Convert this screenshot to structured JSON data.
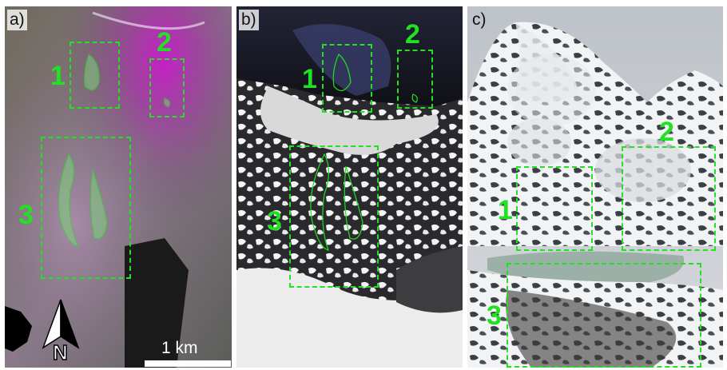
{
  "panels": [
    {
      "label": "a)",
      "kind": "satellite-composite-magenta-green"
    },
    {
      "label": "b)",
      "kind": "satellite-optical-grayscale"
    },
    {
      "label": "c)",
      "kind": "oblique-photo-mountain"
    }
  ],
  "boxes": {
    "a": [
      "1",
      "2",
      "3"
    ],
    "b": [
      "1",
      "2",
      "3"
    ],
    "c": [
      "1",
      "2",
      "3"
    ]
  },
  "scale": {
    "label": "1 km"
  },
  "north_arrow": {
    "label": "N"
  },
  "colors": {
    "annotation": "#22e022"
  }
}
